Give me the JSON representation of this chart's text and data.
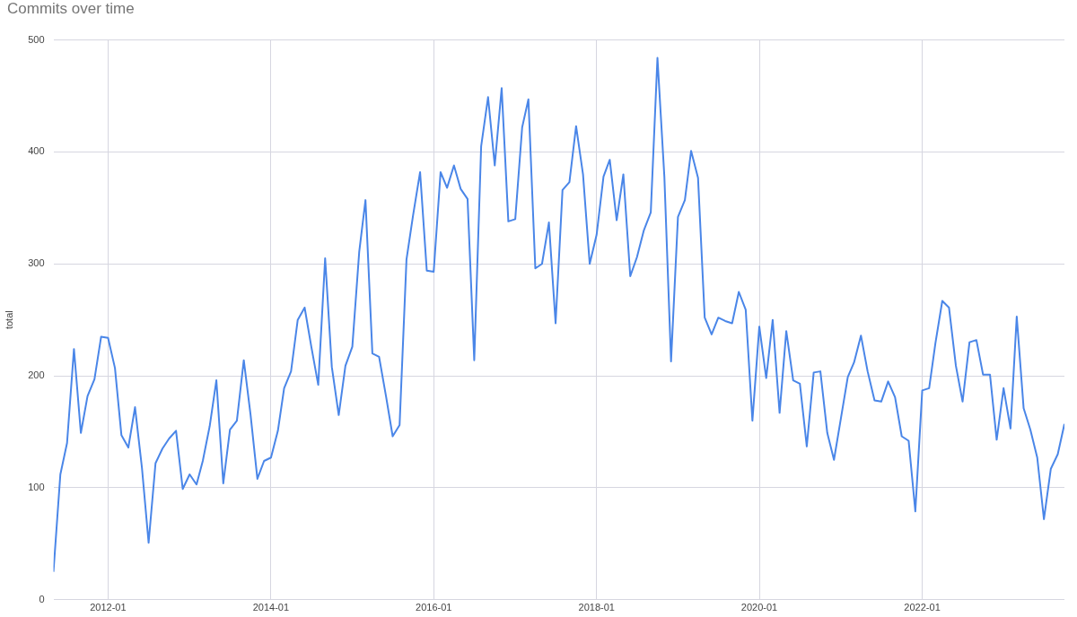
{
  "chart_data": {
    "type": "line",
    "title": "Commits over time",
    "ylabel": "total",
    "x": [
      "2011-05",
      "2011-06",
      "2011-07",
      "2011-08",
      "2011-09",
      "2011-10",
      "2011-11",
      "2011-12",
      "2012-01",
      "2012-02",
      "2012-03",
      "2012-04",
      "2012-05",
      "2012-06",
      "2012-07",
      "2012-08",
      "2012-09",
      "2012-10",
      "2012-11",
      "2012-12",
      "2013-01",
      "2013-02",
      "2013-03",
      "2013-04",
      "2013-05",
      "2013-06",
      "2013-07",
      "2013-08",
      "2013-09",
      "2013-10",
      "2013-11",
      "2013-12",
      "2014-01",
      "2014-02",
      "2014-03",
      "2014-04",
      "2014-05",
      "2014-06",
      "2014-07",
      "2014-08",
      "2014-09",
      "2014-10",
      "2014-11",
      "2014-12",
      "2015-01",
      "2015-02",
      "2015-03",
      "2015-04",
      "2015-05",
      "2015-06",
      "2015-07",
      "2015-08",
      "2015-09",
      "2015-10",
      "2015-11",
      "2015-12",
      "2016-01",
      "2016-02",
      "2016-03",
      "2016-04",
      "2016-05",
      "2016-06",
      "2016-07",
      "2016-08",
      "2016-09",
      "2016-10",
      "2016-11",
      "2016-12",
      "2017-01",
      "2017-02",
      "2017-03",
      "2017-04",
      "2017-05",
      "2017-06",
      "2017-07",
      "2017-08",
      "2017-09",
      "2017-10",
      "2017-11",
      "2017-12",
      "2018-01",
      "2018-02",
      "2018-03",
      "2018-04",
      "2018-05",
      "2018-06",
      "2018-07",
      "2018-08",
      "2018-09",
      "2018-10",
      "2018-11",
      "2018-12",
      "2019-01",
      "2019-02",
      "2019-03",
      "2019-04",
      "2019-05",
      "2019-06",
      "2019-07",
      "2019-08",
      "2019-09",
      "2019-10",
      "2019-11",
      "2019-12",
      "2020-01",
      "2020-02",
      "2020-03",
      "2020-04",
      "2020-05",
      "2020-06",
      "2020-07",
      "2020-08",
      "2020-09",
      "2020-10",
      "2020-11",
      "2020-12",
      "2021-01",
      "2021-02",
      "2021-03",
      "2021-04",
      "2021-05",
      "2021-06",
      "2021-07",
      "2021-08",
      "2021-09",
      "2021-10",
      "2021-11",
      "2021-12",
      "2022-01",
      "2022-02",
      "2022-03",
      "2022-04",
      "2022-05",
      "2022-06",
      "2022-07",
      "2022-08",
      "2022-09",
      "2022-10",
      "2022-11",
      "2022-12",
      "2023-01",
      "2023-02",
      "2023-03",
      "2023-04",
      "2023-05",
      "2023-06",
      "2023-07",
      "2023-08",
      "2023-09",
      "2023-10"
    ],
    "series": [
      {
        "color": "#4a86e8",
        "values": [
          25,
          112,
          140,
          224,
          149,
          182,
          197,
          235,
          234,
          207,
          147,
          136,
          172,
          118,
          51,
          122,
          135,
          144,
          151,
          99,
          112,
          103,
          124,
          155,
          196,
          104,
          152,
          160,
          214,
          166,
          108,
          124,
          127,
          151,
          189,
          204,
          250,
          261,
          226,
          192,
          305,
          208,
          165,
          209,
          226,
          311,
          357,
          220,
          217,
          182,
          146,
          156,
          304,
          344,
          382,
          294,
          293,
          382,
          368,
          388,
          367,
          358,
          214,
          405,
          449,
          388,
          457,
          338,
          340,
          422,
          447,
          296,
          300,
          337,
          247,
          366,
          373,
          423,
          380,
          300,
          326,
          378,
          393,
          339,
          380,
          289,
          306,
          330,
          346,
          484,
          378,
          213,
          342,
          357,
          401,
          377,
          252,
          237,
          252,
          249,
          247,
          275,
          259,
          160,
          244,
          198,
          250,
          167,
          240,
          196,
          193,
          137,
          203,
          204,
          149,
          125,
          162,
          199,
          212,
          236,
          204,
          178,
          177,
          195,
          181,
          146,
          142,
          79,
          187,
          189,
          229,
          267,
          261,
          209,
          177,
          230,
          232,
          201,
          201,
          143,
          189,
          153,
          253,
          171,
          152,
          127,
          72,
          117,
          130,
          157
        ]
      }
    ],
    "xlim": [
      "2011-05",
      "2023-10"
    ],
    "xticks": [
      "2012-01",
      "2014-01",
      "2016-01",
      "2018-01",
      "2020-01",
      "2022-01"
    ],
    "ylim": [
      0,
      500
    ],
    "yticks": [
      0,
      100,
      200,
      300,
      400,
      500
    ],
    "grid": true,
    "legend": false,
    "marker": "none",
    "line_style": "solid"
  }
}
